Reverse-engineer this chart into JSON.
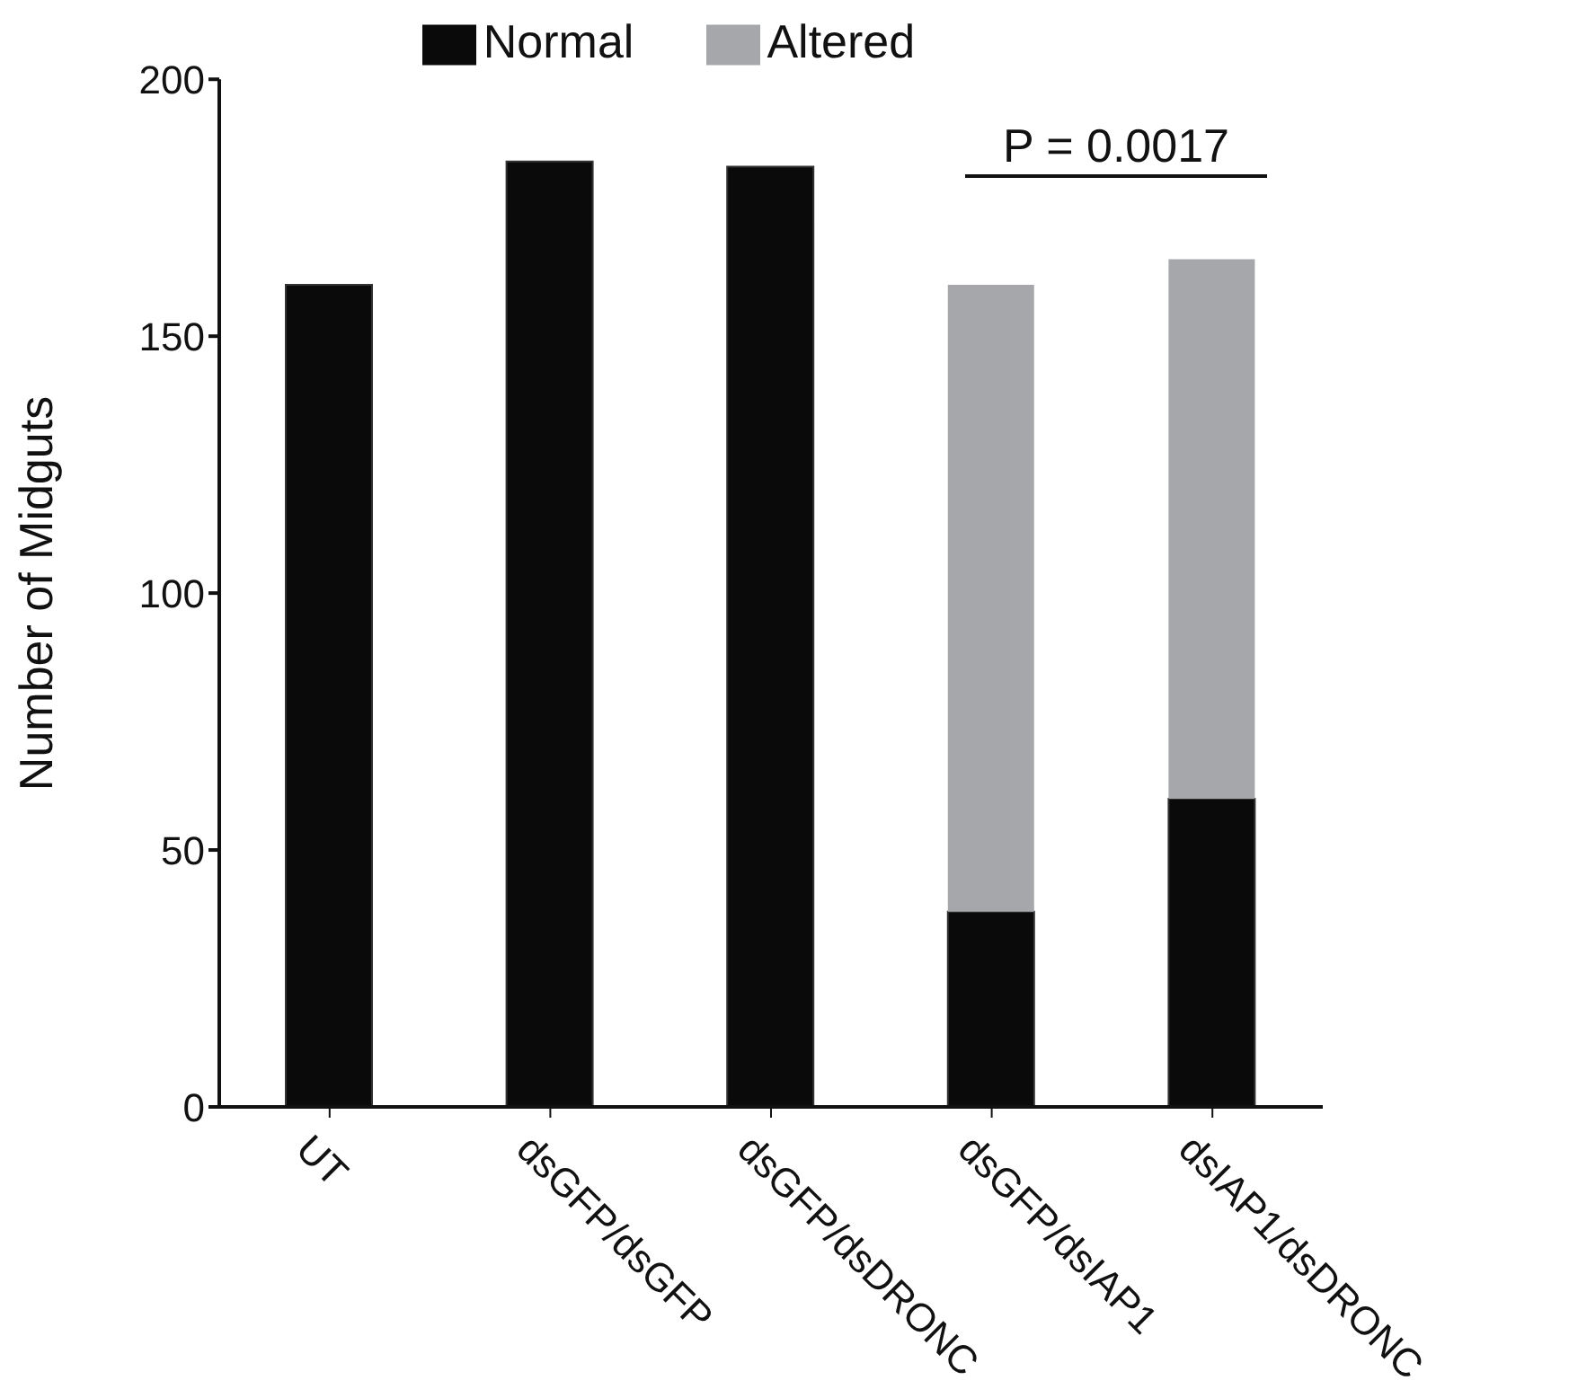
{
  "chart_data": {
    "type": "bar",
    "stacked": true,
    "categories": [
      "UT",
      "dsGFP/dsGFP",
      "dsGFP/dsDRONC",
      "dsGFP/dsIAP1",
      "dsIAP1/dsDRONC"
    ],
    "series": [
      {
        "name": "Normal",
        "color": "#0a0a0a",
        "values": [
          160,
          184,
          183,
          38,
          60
        ]
      },
      {
        "name": "Altered",
        "color": "#a6a7aa",
        "values": [
          0,
          0,
          0,
          122,
          105
        ]
      }
    ],
    "ylabel": "Number of Midguts",
    "ylim": [
      0,
      200
    ],
    "yticks": [
      0,
      50,
      100,
      150,
      200
    ],
    "legend": "top",
    "annotations": [
      "P = 0.0017"
    ]
  }
}
